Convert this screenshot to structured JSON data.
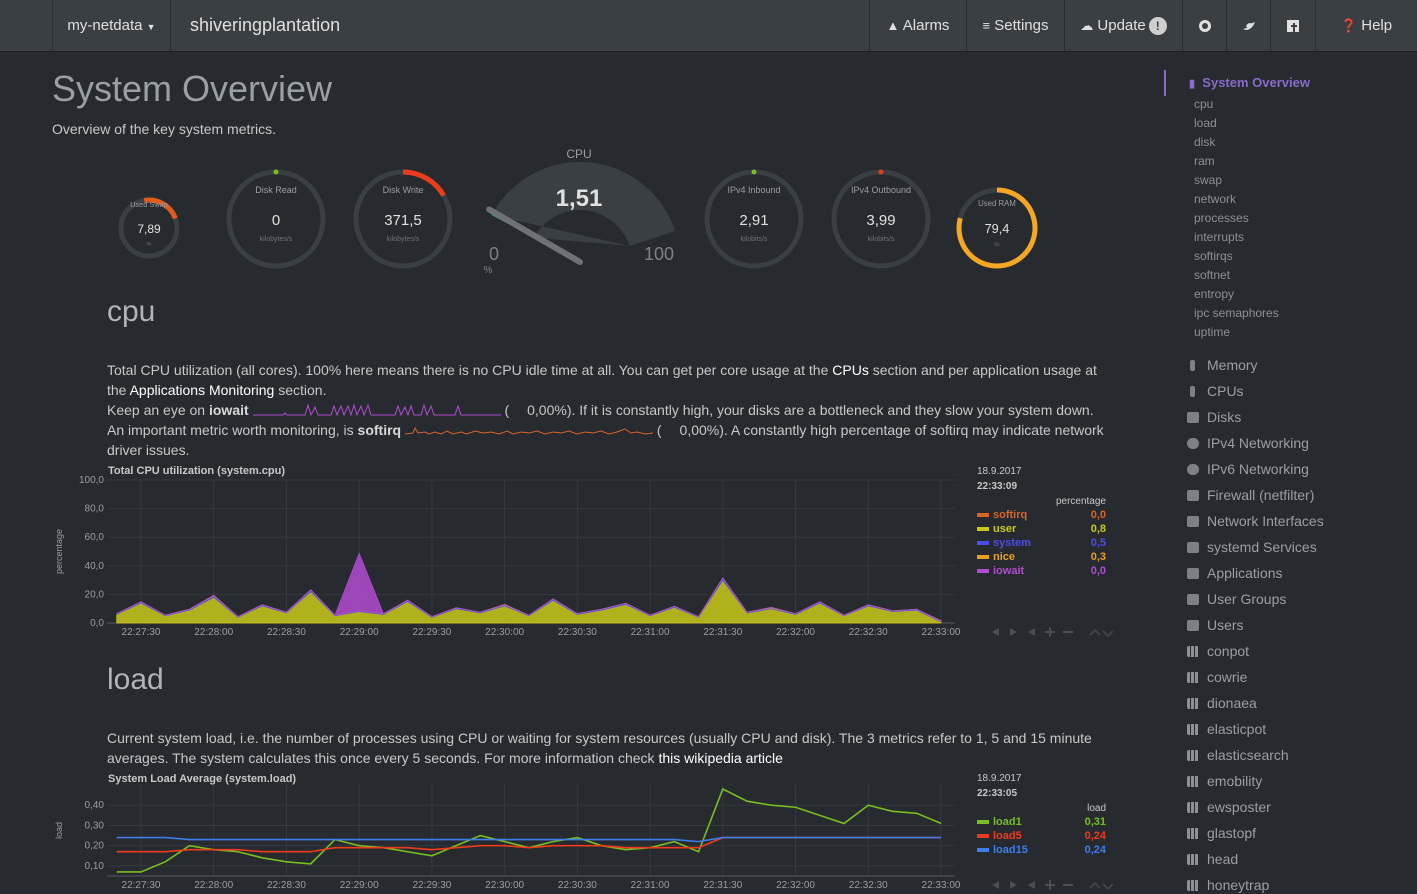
{
  "navbar": {
    "brand": "my-netdata",
    "host": "shiveringplantation",
    "items": [
      "Alarms",
      "Settings",
      "Update",
      "Help"
    ],
    "update_badge": "!"
  },
  "header": {
    "title": "System Overview",
    "subtitle": "Overview of the key system metrics."
  },
  "gauges": [
    {
      "title": "Used Swap",
      "value": 7.89,
      "value_label": "7,89",
      "units": "%"
    },
    {
      "title": "Disk Read",
      "value": 0,
      "value_label": "0",
      "units": "kilobytes/s"
    },
    {
      "title": "Disk Write",
      "value": 371.5,
      "value_label": "371,5",
      "units": "kilobytes/s"
    },
    {
      "title": "IPv4 Inbound",
      "value": 2.91,
      "value_label": "2,91",
      "units": "kilobits/s"
    },
    {
      "title": "IPv4 Outbound",
      "value": 3.99,
      "value_label": "3,99",
      "units": "kilobits/s"
    },
    {
      "title": "Used RAM",
      "value": 79.4,
      "value_label": "79,4",
      "units": "%"
    }
  ],
  "cpu_gauge": {
    "title": "CPU",
    "value": 1.51,
    "value_label": "1,51",
    "min": 0,
    "max": 100,
    "units": "%"
  },
  "sections": [
    {
      "title": "cpu",
      "p1": [
        "Total CPU utilization (all cores). 100% here means there is no CPU idle time at all. You can get per core usage at the ",
        "CPUs",
        " section and per application usage at the ",
        "Applications Monitoring",
        " section."
      ],
      "p2": [
        "Keep an eye on ",
        "iowait",
        "(",
        "0,00%",
        "). If it is constantly high, your disks are a bottleneck and they slow your system down."
      ],
      "p3": [
        "An important metric worth monitoring, is ",
        "softirq",
        "(",
        "0,00%",
        "). A constantly high percentage of softirq may indicate network driver issues."
      ]
    },
    {
      "title": "load",
      "p1": [
        "Current system load, i.e. the number of processes using CPU or waiting for system resources (usually CPU and disk). The 3 metrics refer to 1, 5 and 15 minute averages. The system calculates this once every 5 seconds. For more information check ",
        "this wikipedia article"
      ]
    }
  ],
  "chart_data": [
    {
      "type": "area",
      "stacked": true,
      "title": "Total CPU utilization (system.cpu)",
      "y_label": "percentage",
      "date": "18.9.2017",
      "time": "22:33:09",
      "units": "percentage",
      "categories": [
        null,
        "22:27:30",
        null,
        null,
        "22:28:00",
        null,
        null,
        "22:28:30",
        null,
        null,
        "22:29:00",
        null,
        null,
        "22:29:30",
        null,
        null,
        "22:30:00",
        null,
        null,
        "22:30:30",
        null,
        null,
        "22:31:00",
        null,
        null,
        "22:31:30",
        null,
        null,
        "22:32:00",
        null,
        null,
        "22:32:30",
        null,
        null,
        "22:33:00"
      ],
      "ylim": [
        0,
        100
      ],
      "yticks": [
        {
          "value": 0,
          "label": "0,0"
        },
        {
          "value": 20,
          "label": "20,0"
        },
        {
          "value": 40,
          "label": "40,0"
        },
        {
          "value": 60,
          "label": "60,0"
        },
        {
          "value": 80,
          "label": "80,0"
        },
        {
          "value": 100,
          "label": "100,0"
        }
      ],
      "grid": true,
      "series": [
        {
          "name": "softirq",
          "color": "#d9642a",
          "last_label": "0,0",
          "values": [
            0,
            0,
            0,
            0,
            0,
            0,
            0,
            0,
            0,
            0,
            0,
            0,
            0,
            0,
            0,
            0,
            0,
            0,
            0,
            0,
            0,
            0,
            0,
            0,
            0,
            0,
            0,
            0,
            0,
            0,
            0,
            0,
            0,
            0,
            0
          ]
        },
        {
          "name": "user",
          "color": "#c9c91a",
          "last_label": "0,8",
          "values": [
            6,
            14,
            5,
            9,
            18,
            4,
            12,
            7,
            22,
            5,
            8,
            6,
            15,
            4,
            10,
            7,
            12,
            5,
            16,
            6,
            9,
            13,
            5,
            11,
            4,
            30,
            7,
            10,
            6,
            14,
            5,
            12,
            8,
            9,
            0.8
          ]
        },
        {
          "name": "system",
          "color": "#4d4de6",
          "last_label": "0,5",
          "values": [
            0.5,
            0.8,
            0.4,
            0.6,
            1,
            0.4,
            0.7,
            0.5,
            1.2,
            0.4,
            0.6,
            0.5,
            0.9,
            0.4,
            0.6,
            0.5,
            0.7,
            0.4,
            0.9,
            0.5,
            0.6,
            0.8,
            0.4,
            0.7,
            0.4,
            1.5,
            0.5,
            0.6,
            0.5,
            0.8,
            0.4,
            0.7,
            0.5,
            0.6,
            0.5
          ]
        },
        {
          "name": "nice",
          "color": "#e8a020",
          "last_label": "0,3",
          "values": [
            0,
            0,
            0,
            0,
            0.3,
            0,
            0,
            0,
            0,
            0,
            0,
            0,
            0,
            0,
            0,
            0,
            0.3,
            0,
            0,
            0,
            0,
            0,
            0,
            0,
            0,
            0,
            0,
            0.3,
            0,
            0,
            0,
            0,
            0,
            0,
            0.3
          ]
        },
        {
          "name": "iowait",
          "color": "#b14bd1",
          "last_label": "0,0",
          "values": [
            0,
            0,
            0,
            0,
            0,
            0,
            0,
            0,
            0,
            0,
            40,
            0,
            0,
            0,
            0,
            0,
            0,
            0,
            0,
            0,
            0,
            0,
            0,
            0,
            0,
            0,
            0,
            0,
            0,
            0,
            0,
            0,
            0,
            0,
            0
          ]
        }
      ]
    },
    {
      "type": "line",
      "title": "System Load Average (system.load)",
      "y_label": "load",
      "date": "18.9.2017",
      "time": "22:33:05",
      "units": "load",
      "categories": [
        null,
        "22:27:30",
        null,
        null,
        "22:28:00",
        null,
        null,
        "22:28:30",
        null,
        null,
        "22:29:00",
        null,
        null,
        "22:29:30",
        null,
        null,
        "22:30:00",
        null,
        null,
        "22:30:30",
        null,
        null,
        "22:31:00",
        null,
        null,
        "22:31:30",
        null,
        null,
        "22:32:00",
        null,
        null,
        "22:32:30",
        null,
        null,
        "22:33:00"
      ],
      "ylim": [
        0.05,
        0.5
      ],
      "yticks": [
        {
          "value": 0.1,
          "label": "0,10"
        },
        {
          "value": 0.2,
          "label": "0,20"
        },
        {
          "value": 0.3,
          "label": "0,30"
        },
        {
          "value": 0.4,
          "label": "0,40"
        }
      ],
      "grid": true,
      "series": [
        {
          "name": "load1",
          "color": "#78be20",
          "last_label": "0,31",
          "values": [
            0.07,
            0.07,
            0.12,
            0.2,
            0.18,
            0.17,
            0.14,
            0.12,
            0.11,
            0.23,
            0.2,
            0.19,
            0.17,
            0.15,
            0.2,
            0.25,
            0.22,
            0.19,
            0.22,
            0.24,
            0.2,
            0.18,
            0.19,
            0.22,
            0.17,
            0.48,
            0.42,
            0.4,
            0.39,
            0.35,
            0.31,
            0.4,
            0.37,
            0.36,
            0.31
          ]
        },
        {
          "name": "load5",
          "color": "#ee3b1b",
          "last_label": "0,24",
          "values": [
            0.17,
            0.17,
            0.17,
            0.18,
            0.18,
            0.18,
            0.17,
            0.17,
            0.17,
            0.19,
            0.19,
            0.19,
            0.19,
            0.18,
            0.19,
            0.2,
            0.2,
            0.19,
            0.2,
            0.2,
            0.2,
            0.19,
            0.19,
            0.19,
            0.19,
            0.24,
            0.24,
            0.24,
            0.24,
            0.24,
            0.24,
            0.24,
            0.24,
            0.24,
            0.24
          ]
        },
        {
          "name": "load15",
          "color": "#3f7de8",
          "last_label": "0,24",
          "values": [
            0.24,
            0.24,
            0.24,
            0.23,
            0.23,
            0.23,
            0.23,
            0.23,
            0.23,
            0.23,
            0.23,
            0.23,
            0.23,
            0.23,
            0.23,
            0.23,
            0.23,
            0.23,
            0.23,
            0.23,
            0.23,
            0.23,
            0.23,
            0.23,
            0.22,
            0.24,
            0.24,
            0.24,
            0.24,
            0.24,
            0.24,
            0.24,
            0.24,
            0.24,
            0.24
          ]
        }
      ]
    }
  ],
  "sidebar": {
    "active": "System Overview",
    "subitems": [
      "cpu",
      "load",
      "disk",
      "ram",
      "swap",
      "network",
      "processes",
      "interrupts",
      "softirqs",
      "softnet",
      "entropy",
      "ipc semaphores",
      "uptime"
    ],
    "items": [
      "Memory",
      "CPUs",
      "Disks",
      "IPv4 Networking",
      "IPv6 Networking",
      "Firewall (netfilter)",
      "Network Interfaces",
      "systemd Services",
      "Applications",
      "User Groups",
      "Users",
      "conpot",
      "cowrie",
      "dionaea",
      "elasticpot",
      "elasticsearch",
      "emobility",
      "ewsposter",
      "glastopf",
      "head",
      "honeytrap"
    ]
  }
}
